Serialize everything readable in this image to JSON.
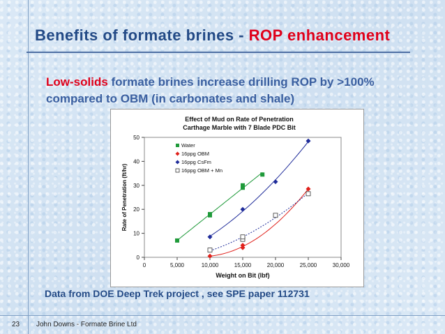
{
  "slide": {
    "title_main": "Benefits of formate brines - ",
    "title_accent": "ROP enhancement",
    "subtitle_highlight": "Low-solids",
    "subtitle_line1_rest": " formate brines increase drilling ROP by >100%",
    "subtitle_line2": "compared to OBM (in carbonates and shale)",
    "footnote": "Data from DOE Deep Trek project , see  SPE  paper 112731",
    "page_number": "23",
    "author": "John Downs - Formate Brine Ltd",
    "colors": {
      "title": "#234a86",
      "accent": "#e0001a",
      "subtitle": "#3a5fa0"
    }
  },
  "chart_data": {
    "type": "scatter",
    "title_line1": "Effect of Mud on Rate of Penetration",
    "title_line2": "Carthage Marble with 7 Blade PDC Bit",
    "xlabel": "Weight on Bit (lbf)",
    "ylabel": "Rate of Penetration (ft/hr)",
    "xlim": [
      0,
      30000
    ],
    "ylim": [
      0,
      50
    ],
    "xticks": [
      "0",
      "5,000",
      "10,000",
      "15,000",
      "20,000",
      "25,000",
      "30,000"
    ],
    "yticks": [
      "0",
      "10",
      "20",
      "30",
      "40",
      "50"
    ],
    "legend_position": "top-left",
    "series": [
      {
        "name": "Water",
        "color": "#1f9a3a",
        "marker": "square",
        "line": "solid",
        "points": [
          [
            5000,
            7
          ],
          [
            10000,
            17.5
          ],
          [
            10000,
            18
          ],
          [
            15000,
            29
          ],
          [
            15000,
            30
          ],
          [
            18000,
            34.5
          ]
        ]
      },
      {
        "name": "16ppg OBM",
        "color": "#e0201a",
        "marker": "diamond",
        "line": "solid",
        "points": [
          [
            10000,
            0.5
          ],
          [
            15000,
            4
          ],
          [
            15000,
            5
          ],
          [
            25000,
            28.5
          ]
        ]
      },
      {
        "name": "16ppg CsFm",
        "color": "#1f2c9a",
        "marker": "diamond",
        "line": "solid",
        "points": [
          [
            10000,
            8.5
          ],
          [
            15000,
            20
          ],
          [
            20000,
            31.5
          ],
          [
            25000,
            48.5
          ]
        ]
      },
      {
        "name": "16ppg OBM + Mn",
        "color": "#1f2c9a",
        "marker": "open-square",
        "line": "dotted",
        "points": [
          [
            10000,
            3
          ],
          [
            15000,
            7.5
          ],
          [
            15000,
            8.5
          ],
          [
            20000,
            17.5
          ],
          [
            25000,
            26.5
          ]
        ]
      }
    ]
  }
}
